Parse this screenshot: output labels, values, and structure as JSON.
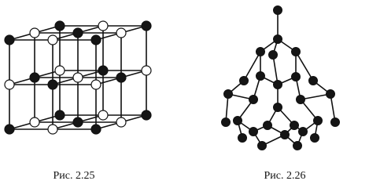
{
  "figures": [
    {
      "caption": "Рис. 2.25"
    },
    {
      "caption": "Рис. 2.26"
    }
  ]
}
